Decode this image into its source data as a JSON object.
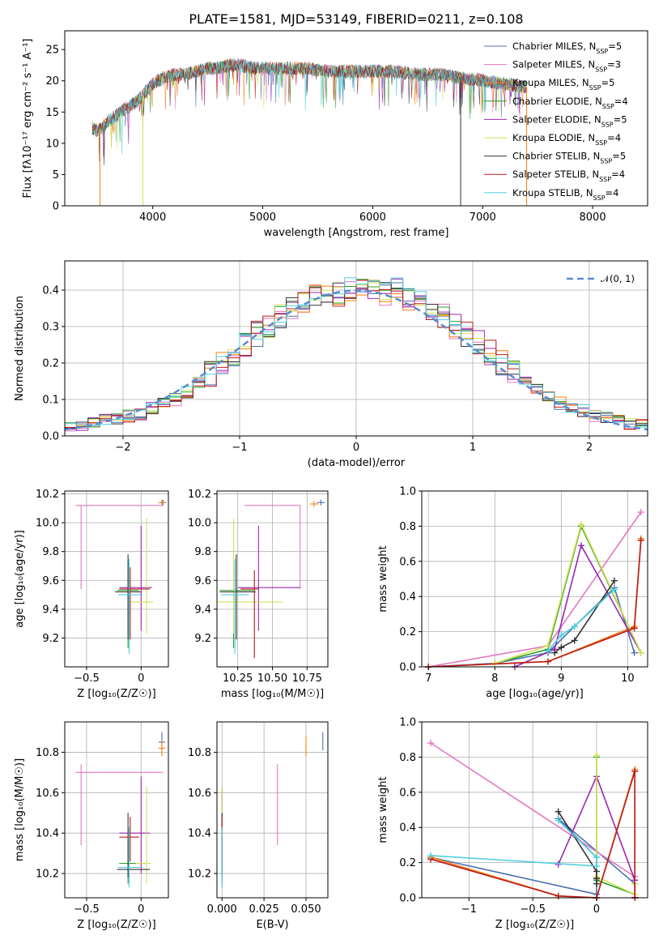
{
  "title": "PLATE=1581, MJD=53149, FIBERID=0211, z=0.108",
  "models": [
    {
      "name": "Chabrier MILES",
      "n": "5",
      "color": "#4c72b0"
    },
    {
      "name": "Salpeter MILES",
      "n": "3",
      "color": "#e377c2"
    },
    {
      "name": "Kroupa MILES",
      "n": "5",
      "color": "#ff7f0e"
    },
    {
      "name": "Chabrier ELODIE",
      "n": "4",
      "color": "#2ca02c"
    },
    {
      "name": "Salpeter ELODIE",
      "n": "5",
      "color": "#9c27b0"
    },
    {
      "name": "Kroupa ELODIE",
      "n": "4",
      "color": "#d4e157"
    },
    {
      "name": "Chabrier STELIB",
      "n": "5",
      "color": "#333333"
    },
    {
      "name": "Salpeter STELIB",
      "n": "4",
      "color": "#b71c1c"
    },
    {
      "name": "Kroupa STELIB",
      "n": "4",
      "color": "#4dd0e1"
    }
  ],
  "nssp_prefix": "N",
  "nssp_sub": "SSP",
  "chart_data": [
    {
      "id": "spectrum",
      "type": "line",
      "xlabel": "wavelength [Angstrom, rest frame]",
      "ylabel": "Flux [fλ10⁻¹⁷ erg cm⁻² s⁻¹ A⁻¹]",
      "xlim": [
        3200,
        8500
      ],
      "ylim": [
        0,
        28
      ],
      "xticks": [
        4000,
        5000,
        6000,
        7000,
        8000
      ],
      "yticks": [
        0,
        5,
        10,
        15,
        20,
        25
      ],
      "grid": false,
      "legend": "upper-right",
      "envelope": {
        "x": [
          3450,
          3500,
          3600,
          3700,
          3800,
          3900,
          4000,
          4100,
          4200,
          4300,
          4400,
          4500,
          4600,
          4700,
          4800,
          4900,
          5000,
          5200,
          5400,
          5600,
          5800,
          6000,
          6200,
          6400,
          6600,
          6800,
          7000,
          7200,
          7400
        ],
        "y": [
          12.5,
          12,
          13.5,
          15,
          16,
          17.5,
          19.5,
          20.5,
          21,
          21,
          21.5,
          22,
          22,
          22.5,
          22.5,
          22,
          22,
          22,
          22,
          21.5,
          21.5,
          21.5,
          21.5,
          21,
          21,
          20.5,
          20,
          19.5,
          19
        ]
      }
    },
    {
      "id": "residuals",
      "type": "histogram",
      "xlabel": "(data-model)/error",
      "ylabel": "Normed distribution",
      "xlim": [
        -2.5,
        2.5
      ],
      "ylim": [
        0,
        0.48
      ],
      "xticks": [
        -2,
        -1,
        0,
        1,
        2
      ],
      "yticks": [
        0.0,
        0.1,
        0.2,
        0.3,
        0.4
      ],
      "grid": true,
      "legend": "upper-right",
      "reference_label": "𝒩(0, 1)",
      "histogram": {
        "bin_edges": [
          -2.5,
          -2.4,
          -2.3,
          -2.2,
          -2.1,
          -2.0,
          -1.9,
          -1.8,
          -1.7,
          -1.6,
          -1.5,
          -1.4,
          -1.3,
          -1.2,
          -1.1,
          -1.0,
          -0.9,
          -0.8,
          -0.7,
          -0.6,
          -0.5,
          -0.4,
          -0.3,
          -0.2,
          -0.1,
          0.0,
          0.1,
          0.2,
          0.3,
          0.4,
          0.5,
          0.6,
          0.7,
          0.8,
          0.9,
          1.0,
          1.1,
          1.2,
          1.3,
          1.4,
          1.5,
          1.6,
          1.7,
          1.8,
          1.9,
          2.0,
          2.1,
          2.2,
          2.3,
          2.4,
          2.5
        ],
        "heights": [
          0.02,
          0.025,
          0.035,
          0.045,
          0.05,
          0.055,
          0.06,
          0.075,
          0.09,
          0.1,
          0.12,
          0.15,
          0.17,
          0.2,
          0.22,
          0.25,
          0.28,
          0.3,
          0.33,
          0.35,
          0.36,
          0.38,
          0.4,
          0.39,
          0.4,
          0.41,
          0.4,
          0.39,
          0.4,
          0.38,
          0.37,
          0.35,
          0.33,
          0.3,
          0.28,
          0.26,
          0.23,
          0.2,
          0.18,
          0.15,
          0.13,
          0.11,
          0.09,
          0.08,
          0.07,
          0.055,
          0.05,
          0.04,
          0.035,
          0.03
        ]
      }
    },
    {
      "id": "age-vs-Z",
      "type": "scatter",
      "xlabel": "Z [log₁₀(Z/Z☉)]",
      "ylabel": "age  [log₁₀(age/yr)]",
      "xlim": [
        -0.7,
        0.25
      ],
      "ylim": [
        9.0,
        10.22
      ],
      "xticks": [
        -0.5,
        0.0
      ],
      "yticks": [
        9.2,
        9.4,
        9.6,
        9.8,
        10.0,
        10.2
      ],
      "grid": true,
      "points": [
        {
          "x": 0.2,
          "y": 10.14,
          "xl": 0.03,
          "xh": 0.03,
          "yl": 0.02,
          "yh": 0.02
        },
        {
          "x": -0.55,
          "y": 10.12,
          "xl": 0.05,
          "xh": 0.75,
          "yl": 0.58,
          "yh": 0.0
        },
        {
          "x": 0.19,
          "y": 10.14,
          "xl": 0.03,
          "xh": 0.03,
          "yl": 0.02,
          "yh": 0.02
        },
        {
          "x": -0.12,
          "y": 9.53,
          "xl": 0.1,
          "xh": 0.1,
          "yl": 0.4,
          "yh": 0.2
        },
        {
          "x": 0.0,
          "y": 9.55,
          "xl": 0.2,
          "xh": 0.1,
          "yl": 0.3,
          "yh": 0.43
        },
        {
          "x": 0.05,
          "y": 9.45,
          "xl": 0.15,
          "xh": 0.06,
          "yl": 0.22,
          "yh": 0.58
        },
        {
          "x": -0.12,
          "y": 9.52,
          "xl": 0.12,
          "xh": 0.12,
          "yl": 0.33,
          "yh": 0.26
        },
        {
          "x": -0.1,
          "y": 9.54,
          "xl": 0.1,
          "xh": 0.18,
          "yl": 0.35,
          "yh": 0.15
        },
        {
          "x": -0.11,
          "y": 9.5,
          "xl": 0.1,
          "xh": 0.12,
          "yl": 0.41,
          "yh": 0.25
        }
      ]
    },
    {
      "id": "age-vs-mass",
      "type": "scatter",
      "xlabel": "mass [log₁₀(M/M☉)]",
      "ylabel": "",
      "xlim": [
        10.1,
        10.9
      ],
      "ylim": [
        9.0,
        10.22
      ],
      "xticks": [
        10.25,
        10.5,
        10.75
      ],
      "yticks": [
        9.2,
        9.4,
        9.6,
        9.8,
        10.0,
        10.2
      ],
      "xtick_labels": [
        "10.25",
        "10.50",
        "10.75"
      ],
      "grid": true,
      "points": [
        {
          "x": 10.85,
          "y": 10.14,
          "xl": 0.03,
          "xh": 0.03,
          "yl": 0.02,
          "yh": 0.02
        },
        {
          "x": 10.7,
          "y": 10.12,
          "xl": 0.4,
          "xh": 0.0,
          "yl": 0.58,
          "yh": 0.0
        },
        {
          "x": 10.8,
          "y": 10.13,
          "xl": 0.03,
          "xh": 0.03,
          "yl": 0.02,
          "yh": 0.02
        },
        {
          "x": 10.22,
          "y": 9.53,
          "xl": 0.1,
          "xh": 0.15,
          "yl": 0.4,
          "yh": 0.2
        },
        {
          "x": 10.4,
          "y": 9.55,
          "xl": 0.15,
          "xh": 0.3,
          "yl": 0.3,
          "yh": 0.43
        },
        {
          "x": 10.22,
          "y": 9.45,
          "xl": 0.12,
          "xh": 0.35,
          "yl": 0.22,
          "yh": 0.58
        },
        {
          "x": 10.24,
          "y": 9.52,
          "xl": 0.12,
          "xh": 0.14,
          "yl": 0.33,
          "yh": 0.26
        },
        {
          "x": 10.37,
          "y": 9.54,
          "xl": 0.1,
          "xh": 0.03,
          "yl": 0.48,
          "yh": 0.13
        },
        {
          "x": 10.23,
          "y": 9.5,
          "xl": 0.1,
          "xh": 0.1,
          "yl": 0.41,
          "yh": 0.25
        }
      ]
    },
    {
      "id": "mass-weight-vs-age",
      "type": "line",
      "xlabel": "age  [log₁₀(age/yr)]",
      "ylabel": "mass weight",
      "xlim": [
        6.9,
        10.3
      ],
      "ylim": [
        0,
        1.0
      ],
      "xticks": [
        7,
        8,
        9,
        10
      ],
      "yticks": [
        0.0,
        0.2,
        0.4,
        0.6,
        0.8,
        1.0
      ],
      "grid": true,
      "series": [
        {
          "x": [
            7.0,
            8.0,
            8.8,
            9.2,
            9.8,
            10.1
          ],
          "y": [
            0.0,
            0.02,
            0.08,
            0.23,
            0.45,
            0.08
          ]
        },
        {
          "x": [
            7.0,
            8.8,
            10.2
          ],
          "y": [
            0.0,
            0.12,
            0.88
          ]
        },
        {
          "x": [
            7.0,
            8.8,
            10.1,
            10.2
          ],
          "y": [
            0.0,
            0.03,
            0.23,
            0.73
          ]
        },
        {
          "x": [
            8.0,
            8.8,
            9.3,
            10.2
          ],
          "y": [
            0.02,
            0.1,
            0.8,
            0.08
          ]
        },
        {
          "x": [
            8.3,
            8.9,
            9.3,
            10.2
          ],
          "y": [
            0.0,
            0.1,
            0.69,
            0.08
          ]
        },
        {
          "x": [
            8.0,
            8.8,
            9.3,
            10.2
          ],
          "y": [
            0.02,
            0.12,
            0.81,
            0.08
          ]
        },
        {
          "x": [
            8.9,
            9.0,
            9.2,
            9.8
          ],
          "y": [
            0.08,
            0.11,
            0.15,
            0.49
          ]
        },
        {
          "x": [
            7.0,
            8.8,
            10.1,
            10.2
          ],
          "y": [
            0.0,
            0.03,
            0.22,
            0.72
          ]
        },
        {
          "x": [
            8.8,
            9.0,
            9.2,
            9.8
          ],
          "y": [
            0.09,
            0.18,
            0.23,
            0.44
          ]
        }
      ]
    },
    {
      "id": "mass-vs-Z",
      "type": "scatter",
      "xlabel": "Z [log₁₀(Z/Z☉)]",
      "ylabel": "mass [log₁₀(M/M☉)]",
      "xlim": [
        -0.7,
        0.25
      ],
      "ylim": [
        10.08,
        10.95
      ],
      "xticks": [
        -0.5,
        0.0
      ],
      "yticks": [
        10.2,
        10.4,
        10.6,
        10.8
      ],
      "grid": true,
      "points": [
        {
          "x": 0.19,
          "y": 10.85,
          "xl": 0.03,
          "xh": 0.03,
          "yl": 0.04,
          "yh": 0.05
        },
        {
          "x": -0.55,
          "y": 10.7,
          "xl": 0.05,
          "xh": 0.75,
          "yl": 0.36,
          "yh": 0.04
        },
        {
          "x": 0.19,
          "y": 10.82,
          "xl": 0.03,
          "xh": 0.03,
          "yl": 0.04,
          "yh": 0.04
        },
        {
          "x": -0.12,
          "y": 10.25,
          "xl": 0.08,
          "xh": 0.15,
          "yl": 0.1,
          "yh": 0.12
        },
        {
          "x": 0.0,
          "y": 10.4,
          "xl": 0.2,
          "xh": 0.08,
          "yl": 0.2,
          "yh": 0.28
        },
        {
          "x": 0.05,
          "y": 10.25,
          "xl": 0.1,
          "xh": 0.04,
          "yl": 0.1,
          "yh": 0.38
        },
        {
          "x": -0.12,
          "y": 10.22,
          "xl": 0.1,
          "xh": 0.2,
          "yl": 0.04,
          "yh": 0.28
        },
        {
          "x": -0.1,
          "y": 10.38,
          "xl": 0.1,
          "xh": 0.08,
          "yl": 0.12,
          "yh": 0.1
        },
        {
          "x": -0.11,
          "y": 10.23,
          "xl": 0.1,
          "xh": 0.1,
          "yl": 0.1,
          "yh": 0.2
        }
      ]
    },
    {
      "id": "mass-vs-EBV",
      "type": "scatter",
      "xlabel": "E(B-V)",
      "ylabel": "",
      "xlim": [
        -0.003,
        0.063
      ],
      "ylim": [
        10.08,
        10.95
      ],
      "xticks": [
        0.0,
        0.025,
        0.05
      ],
      "yticks": [
        10.2,
        10.4,
        10.6,
        10.8
      ],
      "xtick_labels": [
        "0.000",
        "0.025",
        "0.050"
      ],
      "grid": true,
      "points": [
        {
          "x": 0.06,
          "y": 10.85,
          "xl": 0,
          "xh": 0,
          "yl": 0.04,
          "yh": 0.05
        },
        {
          "x": 0.033,
          "y": 10.55,
          "xl": 0,
          "xh": 0,
          "yl": 0.21,
          "yh": 0.19
        },
        {
          "x": 0.05,
          "y": 10.83,
          "xl": 0,
          "xh": 0,
          "yl": 0.05,
          "yh": 0.05
        },
        {
          "x": 0.0,
          "y": 10.25,
          "xl": 0,
          "xh": 0,
          "yl": 0.1,
          "yh": 0.12
        },
        {
          "x": 0.0,
          "y": 10.38,
          "xl": 0,
          "xh": 0,
          "yl": 0.18,
          "yh": 0.24
        },
        {
          "x": 0.0,
          "y": 10.3,
          "xl": 0,
          "xh": 0,
          "yl": 0.14,
          "yh": 0.33
        },
        {
          "x": 0.0,
          "y": 10.22,
          "xl": 0,
          "xh": 0,
          "yl": 0.04,
          "yh": 0.28
        },
        {
          "x": 0.0,
          "y": 10.38,
          "xl": 0,
          "xh": 0,
          "yl": 0.12,
          "yh": 0.1
        },
        {
          "x": 0.0,
          "y": 10.23,
          "xl": 0,
          "xh": 0,
          "yl": 0.1,
          "yh": 0.2
        }
      ]
    },
    {
      "id": "mass-weight-vs-Z",
      "type": "line",
      "xlabel": "Z [log₁₀(Z/Z☉)]",
      "ylabel": "mass weight",
      "xlim": [
        -1.37,
        0.4
      ],
      "ylim": [
        0,
        1.0
      ],
      "xticks": [
        -1.0,
        -0.5,
        0.0
      ],
      "yticks": [
        0.0,
        0.2,
        0.4,
        0.6,
        0.8,
        1.0
      ],
      "grid": true,
      "series": [
        {
          "x": [
            -1.3,
            0.0,
            0.0,
            -0.3,
            0.3
          ],
          "y": [
            0.23,
            0.02,
            0.23,
            0.45,
            0.08
          ]
        },
        {
          "x": [
            -1.3,
            0.3,
            0.3
          ],
          "y": [
            0.88,
            0.12,
            0.0
          ]
        },
        {
          "x": [
            -1.3,
            -0.3,
            0.0,
            0.3,
            0.3
          ],
          "y": [
            0.23,
            0.01,
            0.0,
            0.73,
            0.0
          ]
        },
        {
          "x": [
            0.0,
            0.0,
            0.3,
            0.3
          ],
          "y": [
            0.8,
            0.1,
            0.02,
            0.08
          ]
        },
        {
          "x": [
            -0.3,
            0.0,
            0.3,
            0.3
          ],
          "y": [
            0.19,
            0.69,
            0.1,
            0.0
          ]
        },
        {
          "x": [
            0.0,
            0.0,
            0.3,
            0.3
          ],
          "y": [
            0.81,
            0.12,
            0.02,
            0.08
          ]
        },
        {
          "x": [
            -0.3,
            0.0,
            0.0,
            0.0
          ],
          "y": [
            0.49,
            0.15,
            0.11,
            0.08
          ]
        },
        {
          "x": [
            -1.3,
            -0.3,
            0.0,
            0.3,
            0.3
          ],
          "y": [
            0.22,
            0.01,
            0.0,
            0.72,
            0.0
          ]
        },
        {
          "x": [
            -1.3,
            0.0,
            0.0,
            -0.3
          ],
          "y": [
            0.24,
            0.18,
            0.23,
            0.44
          ]
        }
      ]
    }
  ]
}
